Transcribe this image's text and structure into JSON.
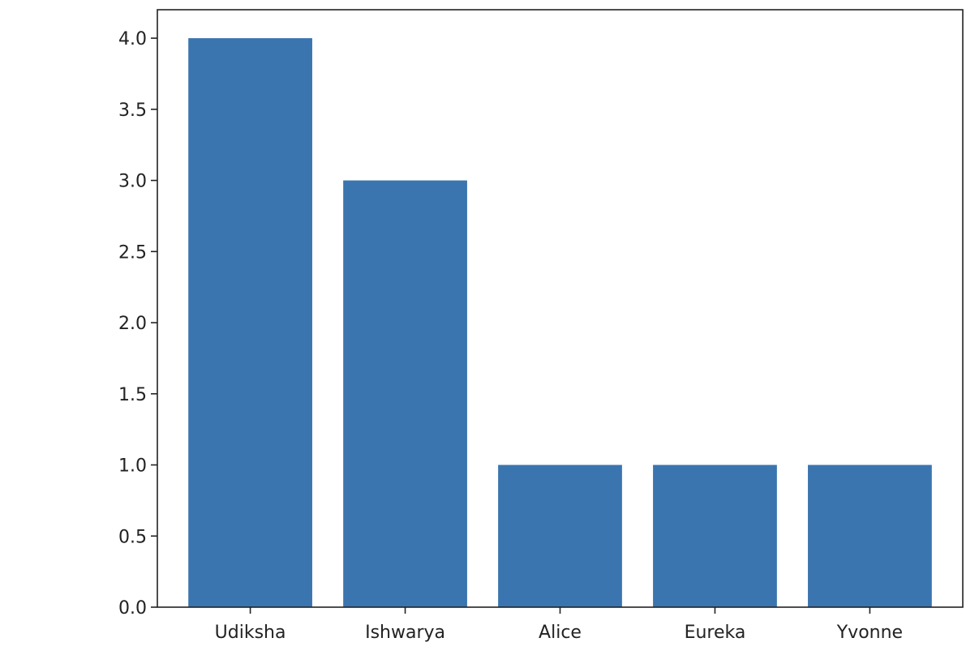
{
  "chart_data": {
    "type": "bar",
    "title": "",
    "xlabel": "",
    "ylabel": "",
    "categories": [
      "Udiksha",
      "Ishwarya",
      "Alice",
      "Eureka",
      "Yvonne"
    ],
    "values": [
      4,
      3,
      1,
      1,
      1
    ],
    "ylim": [
      0,
      4.2
    ],
    "yticks": [
      0.0,
      0.5,
      1.0,
      1.5,
      2.0,
      2.5,
      3.0,
      3.5,
      4.0
    ],
    "ytick_labels": [
      "0.0",
      "0.5",
      "1.0",
      "1.5",
      "2.0",
      "2.5",
      "3.0",
      "3.5",
      "4.0"
    ],
    "grid": false,
    "bar_color": "#3a75b0",
    "axis_color": "#222222"
  }
}
